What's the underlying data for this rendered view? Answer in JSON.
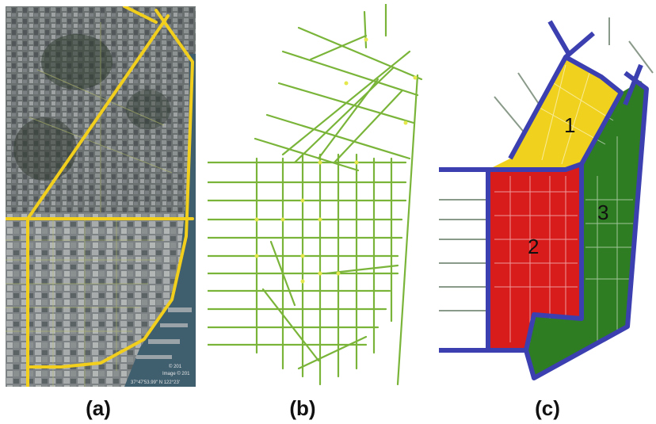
{
  "figure": {
    "captions": {
      "a": "(a)",
      "b": "(b)",
      "c": "(c)"
    },
    "panel_a": {
      "copyright_line_1": "© 201",
      "copyright_line_2": "Image © 201",
      "coords_text": "37°47'53.99\" N  122°23'"
    },
    "panel_c": {
      "regions": [
        {
          "label": "1",
          "color": "#f0d21e"
        },
        {
          "label": "2",
          "color": "#d81c1c"
        },
        {
          "label": "3",
          "color": "#2f7d22"
        }
      ],
      "boundary_color": "#3b3fb0"
    },
    "colors": {
      "route_yellow": "#f2cf1d",
      "road_green": "#7ab53a",
      "node_yellow": "#e5e84a"
    }
  }
}
